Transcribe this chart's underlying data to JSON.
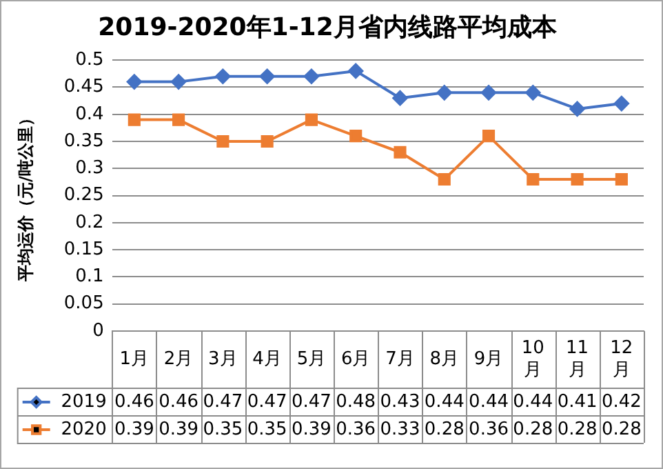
{
  "chart_data": {
    "type": "line",
    "title": "2019-2020年1-12月省内线路平均成本",
    "ylabel": "平均运价（元/吨公里）",
    "categories": [
      "1月",
      "2月",
      "3月",
      "4月",
      "5月",
      "6月",
      "7月",
      "8月",
      "9月",
      "10月",
      "11月",
      "12月"
    ],
    "series": [
      {
        "name": "2019",
        "color": "#4472c4",
        "marker": "diamond",
        "values": [
          0.46,
          0.46,
          0.47,
          0.47,
          0.47,
          0.48,
          0.43,
          0.44,
          0.44,
          0.44,
          0.41,
          0.42
        ]
      },
      {
        "name": "2020",
        "color": "#ed7d31",
        "marker": "square",
        "values": [
          0.39,
          0.39,
          0.35,
          0.35,
          0.39,
          0.36,
          0.33,
          0.28,
          0.36,
          0.28,
          0.28,
          0.28
        ]
      }
    ],
    "ylim": [
      0,
      0.5
    ],
    "yticks": [
      0,
      0.05,
      0.1,
      0.15,
      0.2,
      0.25,
      0.3,
      0.35,
      0.4,
      0.45,
      0.5
    ],
    "grid": "y",
    "legend": "bottom",
    "data_labels": true,
    "line_style": "solid"
  }
}
